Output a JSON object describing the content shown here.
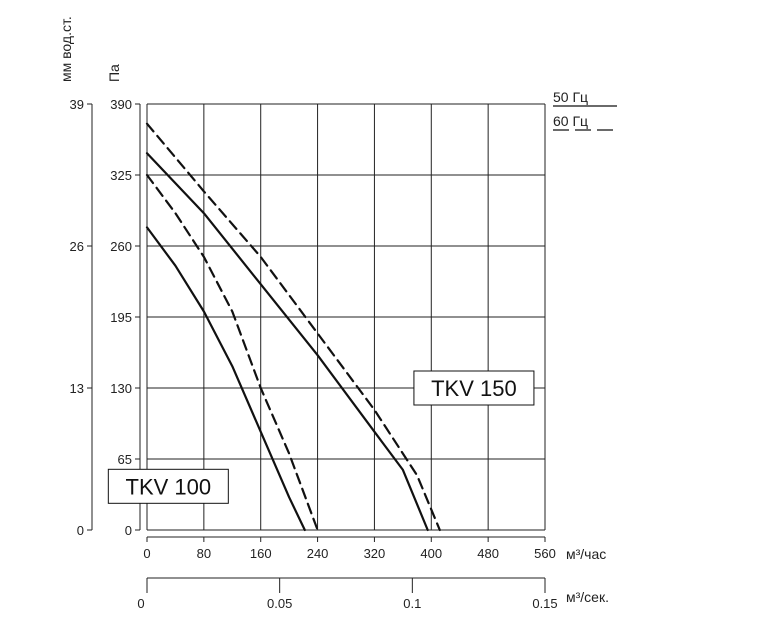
{
  "chart_data": {
    "type": "line",
    "x_axis": {
      "unit_label": "м³/час",
      "min": 0,
      "max": 560,
      "ticks": [
        0,
        80,
        160,
        240,
        320,
        400,
        480,
        560
      ]
    },
    "x2_axis": {
      "unit_label": "м³/сек.",
      "min": 0,
      "max": 0.15,
      "ticks": [
        0,
        0.05,
        0.1,
        0.15
      ],
      "tick_labels": [
        "0",
        "0.05",
        "0.1",
        "0.15"
      ]
    },
    "y_axis": {
      "unit_label": "Па",
      "min": 0,
      "max": 390,
      "ticks": [
        0,
        65,
        130,
        195,
        260,
        325,
        390
      ]
    },
    "y2_axis": {
      "unit_label": "мм вод.ст.",
      "ticks": [
        0,
        13,
        26,
        39
      ],
      "tick_pa": [
        0,
        130,
        260,
        390
      ]
    },
    "grid": true,
    "legend": {
      "placement": "top-right",
      "entries": [
        {
          "label": "50 Гц",
          "style": "solid"
        },
        {
          "label": "60 Гц",
          "style": "dashed"
        }
      ]
    },
    "annotations": [
      {
        "text": "TKV 100",
        "x": 30,
        "y": 40
      },
      {
        "text": "TKV 150",
        "x": 460,
        "y": 130
      }
    ],
    "series": [
      {
        "model": "TKV 100",
        "freq": "50 Гц",
        "style": "solid",
        "points": [
          [
            0,
            277
          ],
          [
            40,
            242
          ],
          [
            80,
            200
          ],
          [
            120,
            150
          ],
          [
            160,
            90
          ],
          [
            200,
            30
          ],
          [
            222,
            0
          ]
        ]
      },
      {
        "model": "TKV 100",
        "freq": "60 Гц",
        "style": "dashed",
        "points": [
          [
            0,
            325
          ],
          [
            40,
            290
          ],
          [
            80,
            250
          ],
          [
            120,
            200
          ],
          [
            160,
            130
          ],
          [
            200,
            70
          ],
          [
            240,
            0
          ]
        ]
      },
      {
        "model": "TKV 150",
        "freq": "50 Гц",
        "style": "solid",
        "points": [
          [
            0,
            345
          ],
          [
            80,
            290
          ],
          [
            160,
            225
          ],
          [
            240,
            160
          ],
          [
            320,
            90
          ],
          [
            360,
            55
          ],
          [
            395,
            0
          ]
        ]
      },
      {
        "model": "TKV 150",
        "freq": "60 Гц",
        "style": "dashed",
        "points": [
          [
            0,
            372
          ],
          [
            80,
            310
          ],
          [
            160,
            250
          ],
          [
            240,
            180
          ],
          [
            320,
            110
          ],
          [
            380,
            50
          ],
          [
            412,
            0
          ]
        ]
      }
    ]
  }
}
